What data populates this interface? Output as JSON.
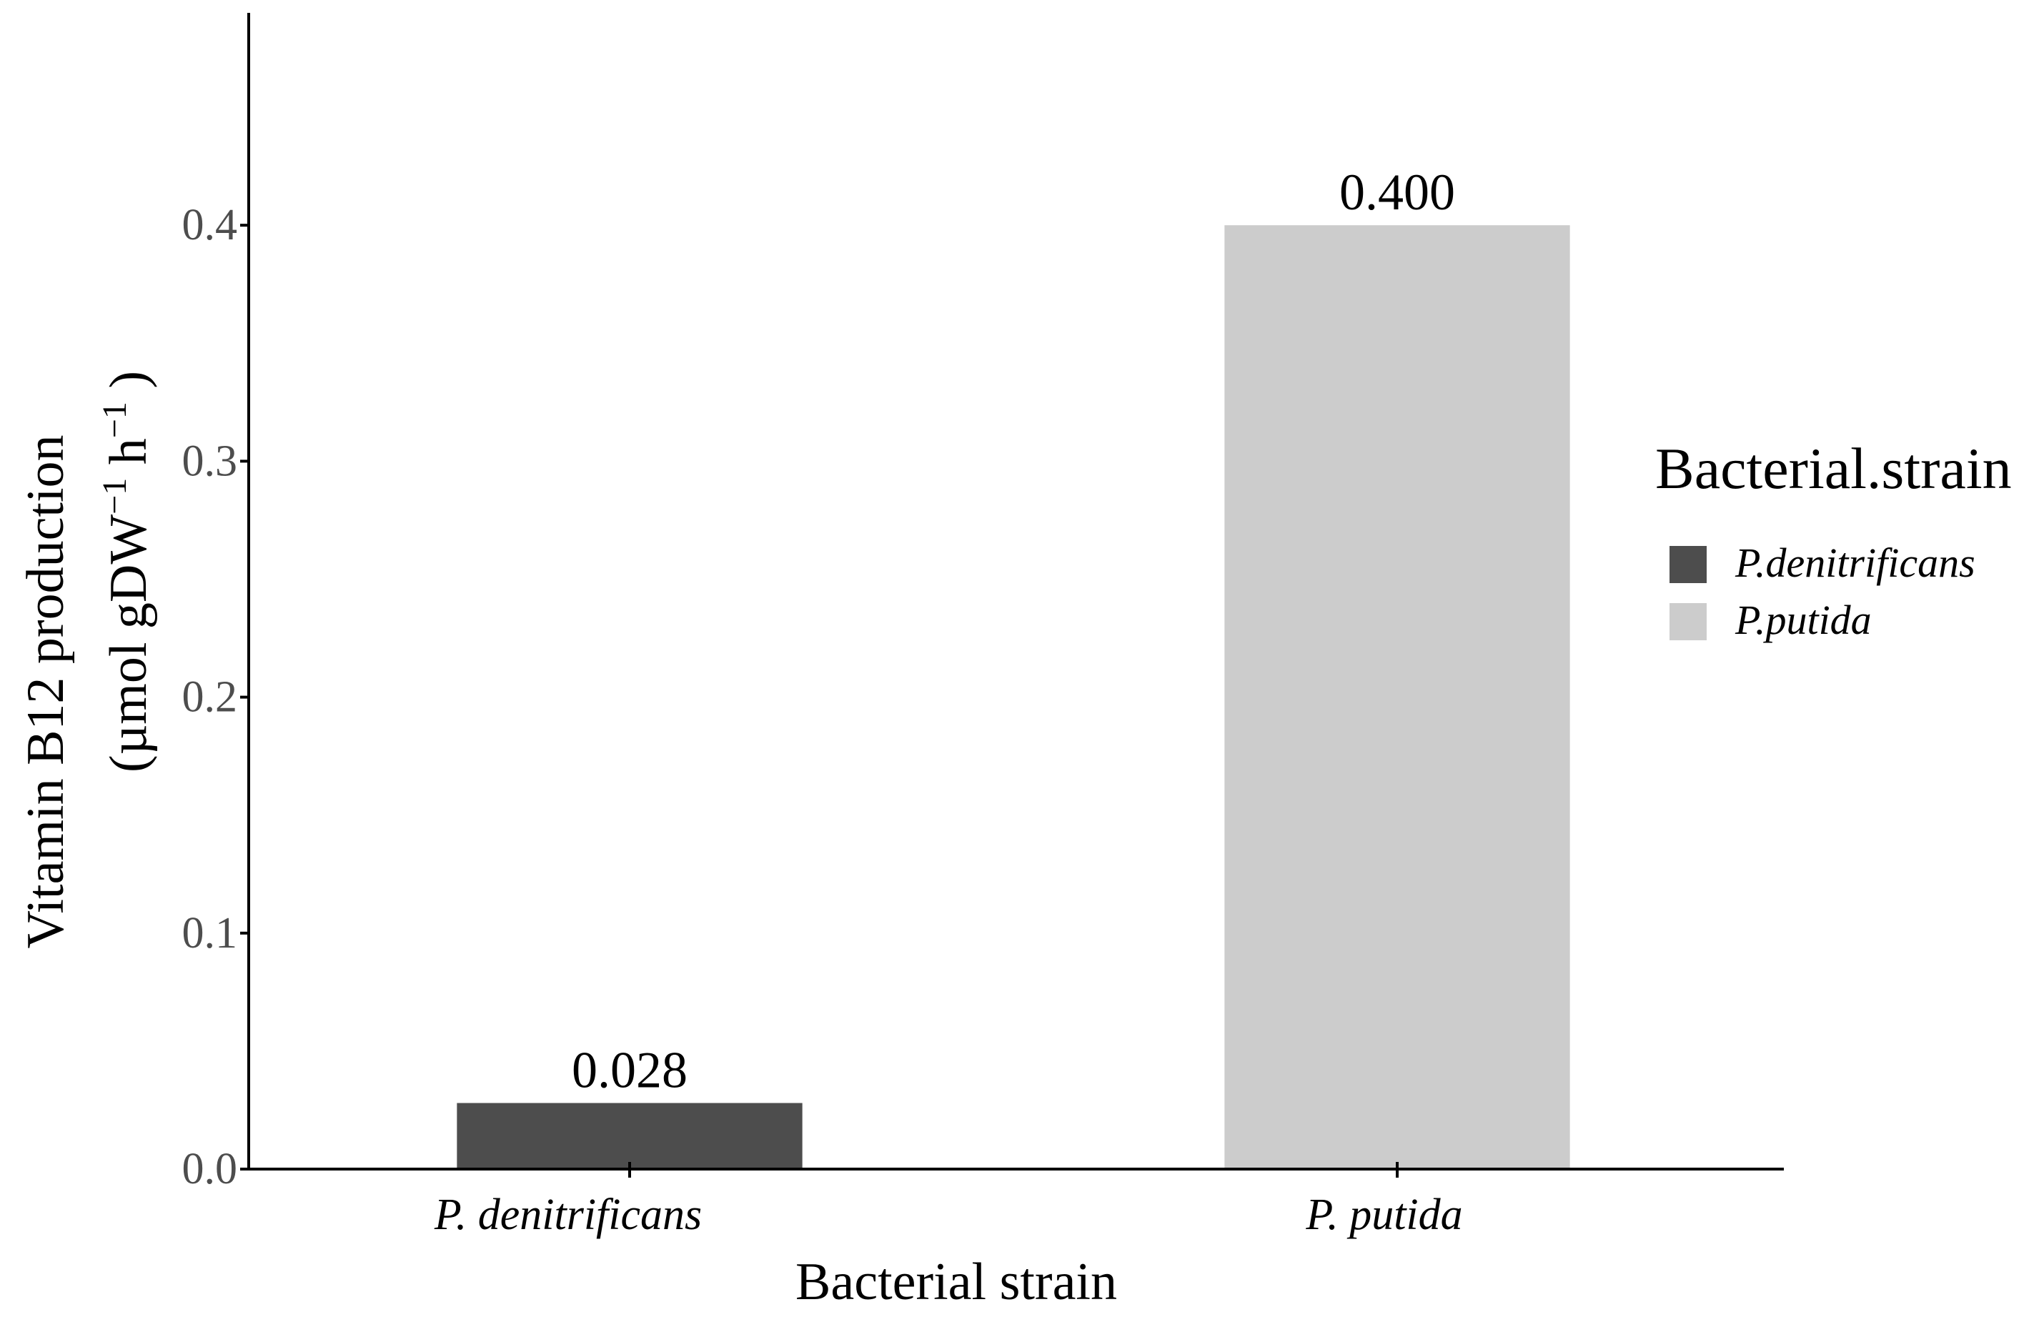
{
  "chart_data": {
    "type": "bar",
    "categories": [
      "P. denitrificans",
      "P. putida"
    ],
    "values": [
      0.028,
      0.4
    ],
    "value_labels": [
      "0.028",
      "0.400"
    ],
    "colors": [
      "#4d4d4d",
      "#cccccc"
    ],
    "title": "",
    "xlabel": "Bacterial strain",
    "ylabel_line1": "Vitamin B12 production",
    "ylabel_line2_parts": [
      "(µmol gDW",
      "−1",
      " h",
      "−1",
      " )"
    ],
    "y_ticks": [
      "0.0",
      "0.1",
      "0.2",
      "0.3",
      "0.4"
    ],
    "y_tick_values": [
      0.0,
      0.1,
      0.2,
      0.3,
      0.4
    ],
    "ylim": [
      0,
      0.49
    ],
    "legend": {
      "title": "Bacterial.strain",
      "position": "right",
      "items": [
        {
          "label": "P.denitrificans",
          "color": "#4d4d4d"
        },
        {
          "label": "P.putida",
          "color": "#cccccc"
        }
      ]
    },
    "grid": false
  }
}
